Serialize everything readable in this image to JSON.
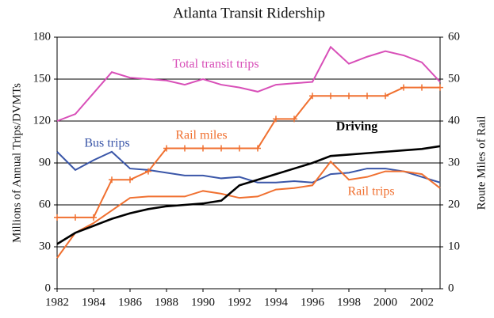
{
  "chart_data": {
    "type": "line",
    "title": "Atlanta Transit Ridership",
    "ylabel": "Millions of Annual Trips/DVMTs",
    "y2label": "Route Miles of Rail",
    "x": [
      1982,
      1983,
      1984,
      1985,
      1986,
      1987,
      1988,
      1989,
      1990,
      1991,
      1992,
      1993,
      1994,
      1995,
      1996,
      1997,
      1998,
      1999,
      2000,
      2001,
      2002,
      2003
    ],
    "xlim": [
      1982,
      2003
    ],
    "xticks": [
      1982,
      1984,
      1986,
      1988,
      1990,
      1992,
      1994,
      1996,
      1998,
      2000,
      2002
    ],
    "ylim": [
      0,
      180
    ],
    "yticks": [
      0,
      30,
      60,
      90,
      120,
      150,
      180
    ],
    "y2lim": [
      0,
      60
    ],
    "y2ticks": [
      0,
      10,
      20,
      30,
      40,
      50,
      60
    ],
    "grid": true,
    "series": [
      {
        "name": "Total transit trips",
        "color": "#d84fb8",
        "values": [
          120,
          125,
          140,
          155,
          151,
          150,
          149,
          146,
          150,
          146,
          144,
          141,
          146,
          147,
          148,
          173,
          161,
          166,
          170,
          167,
          162,
          148
        ]
      },
      {
        "name": "Bus trips",
        "color": "#3a56a8",
        "values": [
          98,
          85,
          92,
          98,
          86,
          85,
          83,
          81,
          81,
          79,
          80,
          76,
          76,
          77,
          76,
          82,
          83,
          86,
          86,
          84,
          80,
          76
        ]
      },
      {
        "name": "Rail trips",
        "color": "#f07030",
        "values": [
          22,
          40,
          47,
          56,
          65,
          66,
          66,
          66,
          70,
          68,
          65,
          66,
          71,
          72,
          74,
          91,
          78,
          80,
          84,
          84,
          82,
          72
        ]
      },
      {
        "name": "Driving",
        "color": "#000000",
        "values": [
          32,
          40,
          45,
          50,
          54,
          57,
          59,
          60,
          61,
          63,
          74,
          78,
          82,
          86,
          90,
          95,
          96,
          97,
          98,
          99,
          100,
          102
        ]
      },
      {
        "name": "Rail miles",
        "color": "#f07030",
        "axis": "y2",
        "markers": true,
        "values": [
          17,
          17,
          17,
          26,
          26,
          28,
          33.5,
          33.5,
          33.5,
          33.5,
          33.5,
          33.5,
          40.5,
          40.5,
          46,
          46,
          46,
          46,
          46,
          48,
          48,
          48
        ]
      }
    ]
  }
}
